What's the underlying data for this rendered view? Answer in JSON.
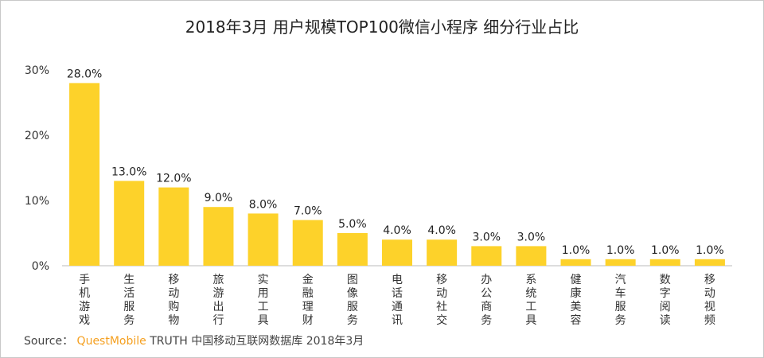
{
  "chart_data": {
    "type": "bar",
    "title": "2018年3月 用户规模TOP100微信小程序 细分行业占比",
    "categories": [
      "手机游戏",
      "生活服务",
      "移动购物",
      "旅游出行",
      "实用工具",
      "金融理财",
      "图像服务",
      "电话通讯",
      "移动社交",
      "办公商务",
      "系统工具",
      "健康美容",
      "汽车服务",
      "数字阅读",
      "移动视频"
    ],
    "values": [
      28.0,
      13.0,
      12.0,
      9.0,
      8.0,
      7.0,
      5.0,
      4.0,
      4.0,
      3.0,
      3.0,
      1.0,
      1.0,
      1.0,
      1.0
    ],
    "data_labels": [
      "28.0%",
      "13.0%",
      "12.0%",
      "9.0%",
      "8.0%",
      "7.0%",
      "5.0%",
      "4.0%",
      "4.0%",
      "3.0%",
      "3.0%",
      "1.0%",
      "1.0%",
      "1.0%",
      "1.0%"
    ],
    "yticks": [
      0,
      10,
      20,
      30
    ],
    "ytick_labels": [
      "0%",
      "10%",
      "20%",
      "30%"
    ],
    "ylim": [
      0,
      30
    ],
    "xlabel": "",
    "ylabel": "",
    "grid": false,
    "bar_color": "#fdd22a"
  },
  "source": {
    "prefix": "Source：",
    "brand": "QuestMobile",
    "text": "TRUTH 中国移动互联网数据库 2018年3月"
  }
}
